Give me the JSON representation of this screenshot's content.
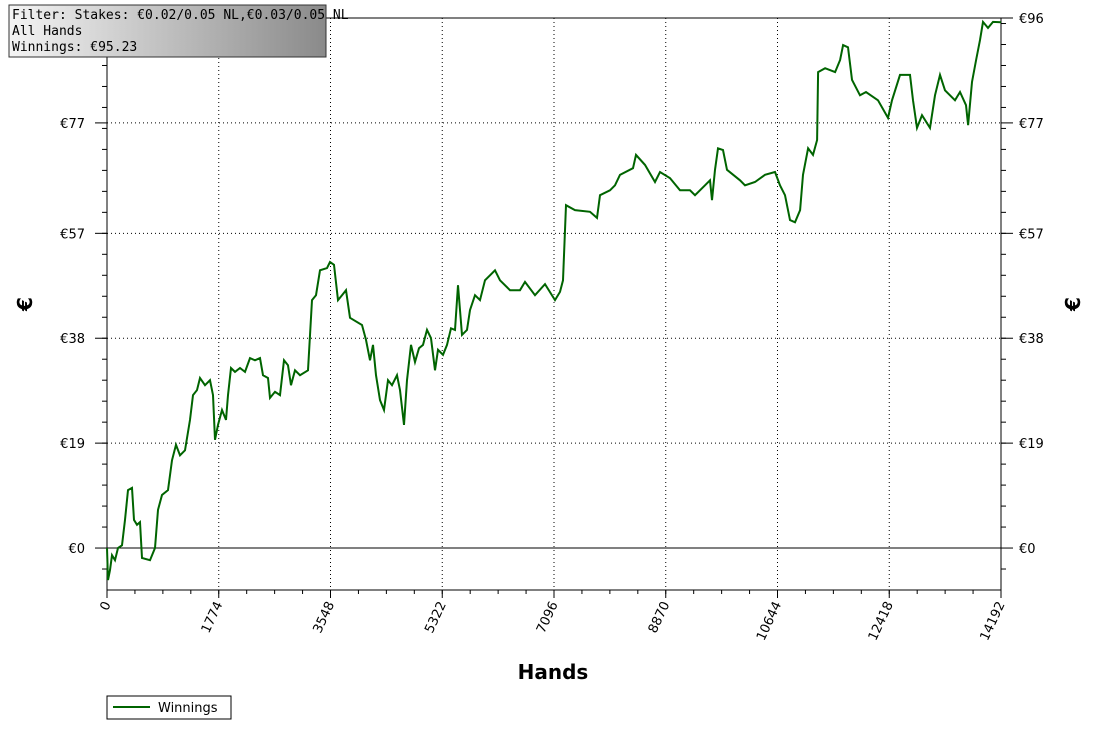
{
  "chart_data": {
    "type": "line",
    "info_lines": [
      "Filter: Stakes: €0.02/0.05 NL,€0.03/0.05 NL",
      "All Hands",
      "Winnings: €95.23"
    ],
    "x_label": "Hands",
    "y_label": "€",
    "y2_label": "€",
    "xlim": [
      0,
      14192
    ],
    "xticks": [
      0,
      1774,
      3548,
      5322,
      7096,
      8870,
      10644,
      12418,
      14192
    ],
    "ylim": [
      -7.6,
      96
    ],
    "yticks": [
      {
        "value": 0,
        "label": "€0"
      },
      {
        "value": 19,
        "label": "€19"
      },
      {
        "value": 38,
        "label": "€38"
      },
      {
        "value": 57,
        "label": "€57"
      },
      {
        "value": 77,
        "label": "€77"
      },
      {
        "value": 96,
        "label": "€96"
      }
    ],
    "grid": true,
    "legend": "bottom-left",
    "x": [
      0,
      16,
      48,
      79,
      127,
      175,
      238,
      286,
      333,
      397,
      429,
      476,
      524,
      556,
      683,
      762,
      810,
      873,
      968,
      1032,
      1095,
      1159,
      1238,
      1318,
      1365,
      1429,
      1476,
      1556,
      1635,
      1683,
      1715,
      1762,
      1826,
      1889,
      1921,
      1969,
      2032,
      2111,
      2191,
      2270,
      2350,
      2429,
      2477,
      2556,
      2588,
      2667,
      2746,
      2810,
      2873,
      2921,
      2985,
      3064,
      3191,
      3254,
      3318,
      3381,
      3493,
      3540,
      3604,
      3667,
      3731,
      3794,
      3858,
      4048,
      4112,
      4175,
      4223,
      4270,
      4334,
      4397,
      4461,
      4525,
      4604,
      4651,
      4715,
      4763,
      4826,
      4890,
      4953,
      5017,
      5080,
      5144,
      5207,
      5255,
      5334,
      5398,
      5461,
      5525,
      5572,
      5636,
      5715,
      5763,
      5842,
      5921,
      6001,
      6080,
      6160,
      6239,
      6398,
      6556,
      6636,
      6794,
      6953,
      7112,
      7191,
      7239,
      7287,
      7430,
      7668,
      7779,
      7826,
      7985,
      8065,
      8144,
      8350,
      8398,
      8541,
      8700,
      8779,
      8938,
      9097,
      9255,
      9334,
      9493,
      9572,
      9604,
      9652,
      9699,
      9779,
      9843,
      10049,
      10128,
      10287,
      10446,
      10605,
      10684,
      10763,
      10843,
      10922,
      11002,
      11049,
      11129,
      11208,
      11272,
      11288,
      11399,
      11558,
      11637,
      11685,
      11763,
      11827,
      11954,
      12049,
      12240,
      12398,
      12462,
      12589,
      12748,
      12795,
      12859,
      12938,
      13065,
      13145,
      13224,
      13303,
      13462,
      13541,
      13637,
      13669,
      13732,
      13796,
      13859,
      13907,
      13986,
      14065,
      14192
    ],
    "series": [
      {
        "name": "Winnings",
        "color": "#006400",
        "values": [
          0,
          -5.8,
          -4.0,
          -1.3,
          -2.2,
          0,
          0.5,
          5.1,
          10.5,
          10.9,
          5.1,
          4.2,
          4.7,
          -1.8,
          -2.2,
          0,
          6.9,
          9.6,
          10.5,
          15.9,
          18.7,
          16.8,
          17.7,
          23.2,
          27.7,
          28.6,
          30.8,
          29.5,
          30.4,
          27.7,
          19.6,
          22.3,
          25.0,
          23.2,
          27.7,
          32.6,
          31.9,
          32.6,
          31.9,
          34.4,
          34.0,
          34.4,
          31.3,
          30.8,
          27.2,
          28.3,
          27.7,
          34.0,
          33.1,
          29.5,
          32.2,
          31.3,
          32.2,
          44.9,
          45.8,
          50.3,
          50.7,
          51.8,
          51.3,
          44.9,
          45.8,
          46.7,
          41.7,
          40.4,
          37.7,
          34.0,
          36.8,
          31.3,
          26.8,
          25.0,
          30.4,
          29.5,
          31.3,
          28.6,
          22.3,
          30.4,
          36.8,
          33.7,
          36.2,
          36.8,
          39.5,
          38.0,
          32.2,
          35.9,
          35.0,
          36.8,
          39.8,
          39.5,
          47.6,
          38.6,
          39.5,
          43.1,
          45.8,
          44.9,
          48.5,
          49.4,
          50.3,
          48.5,
          46.7,
          46.7,
          48.2,
          45.8,
          47.8,
          44.9,
          46.4,
          48.5,
          62.1,
          61.2,
          60.9,
          59.8,
          63.9,
          64.8,
          65.7,
          67.6,
          68.8,
          71.2,
          69.4,
          66.3,
          68.1,
          67.0,
          64.8,
          64.8,
          63.9,
          65.7,
          66.6,
          63.0,
          68.5,
          72.4,
          72.1,
          68.5,
          66.6,
          65.7,
          66.3,
          67.6,
          68.1,
          65.7,
          63.9,
          59.4,
          59.0,
          61.2,
          67.6,
          72.4,
          71.2,
          73.9,
          86.2,
          86.9,
          86.2,
          88.4,
          91.1,
          90.7,
          84.8,
          82.0,
          82.6,
          81.1,
          77.9,
          81.1,
          85.7,
          85.7,
          81.1,
          76.1,
          78.4,
          76.1,
          82.0,
          85.7,
          82.9,
          81.1,
          82.6,
          80.2,
          76.6,
          84.4,
          88.4,
          92.0,
          95.3,
          94.2,
          95.3,
          95.23
        ]
      }
    ]
  }
}
